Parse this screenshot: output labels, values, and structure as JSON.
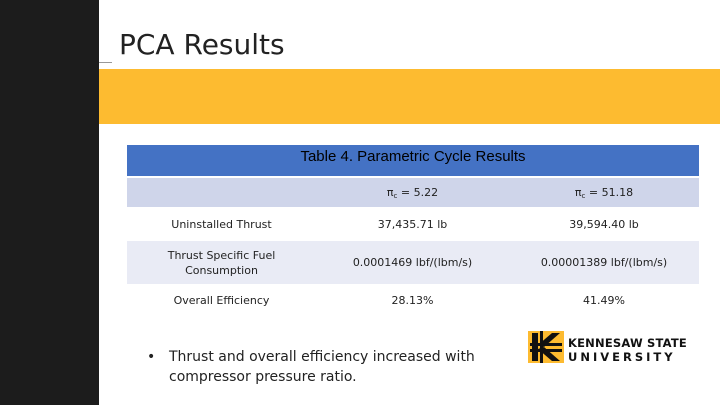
{
  "slide": {
    "title": "PCA Results",
    "table": {
      "caption": "Table 4. Parametric Cycle Results",
      "headers": [
        {
          "symbol": "π",
          "subscript": "c",
          "value": " = 5.22"
        },
        {
          "symbol": "π",
          "subscript": "c",
          "value": " = 51.18"
        }
      ],
      "rows": [
        {
          "label": "Uninstalled Thrust",
          "values": [
            "37,435.71 lb",
            "39,594.40 lb"
          ]
        },
        {
          "label_lines": [
            "Thrust Specific Fuel",
            "Consumption"
          ],
          "values": [
            "0.0001469 lbf/(lbm/s)",
            "0.00001389 lbf/(lbm/s)"
          ]
        },
        {
          "label": "Overall Efficiency",
          "values": [
            "28.13%",
            "41.49%"
          ]
        }
      ]
    },
    "bullet": {
      "marker": "•",
      "lines": [
        "Thrust and overall efficiency increased with",
        "compressor pressure ratio."
      ]
    },
    "logo": {
      "line1": "KENNESAW STATE",
      "line2": "UNIVERSITY",
      "mark_icon": "ksu-k-mark-icon",
      "colors": {
        "gold": "#fdbb30",
        "black": "#111111"
      }
    }
  },
  "colors": {
    "left_bar": "#1c1c1c",
    "gold_band": "#fdbb30",
    "table_caption": "#4472c4",
    "header_row": "#cfd5ea",
    "banded_row": "#e9ebf5"
  }
}
